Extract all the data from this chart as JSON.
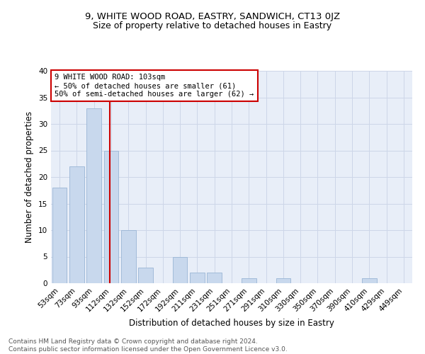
{
  "title1": "9, WHITE WOOD ROAD, EASTRY, SANDWICH, CT13 0JZ",
  "title2": "Size of property relative to detached houses in Eastry",
  "xlabel": "Distribution of detached houses by size in Eastry",
  "ylabel": "Number of detached properties",
  "categories": [
    "53sqm",
    "73sqm",
    "93sqm",
    "112sqm",
    "132sqm",
    "152sqm",
    "172sqm",
    "192sqm",
    "211sqm",
    "231sqm",
    "251sqm",
    "271sqm",
    "291sqm",
    "310sqm",
    "330sqm",
    "350sqm",
    "370sqm",
    "390sqm",
    "410sqm",
    "429sqm",
    "449sqm"
  ],
  "values": [
    18,
    22,
    33,
    25,
    10,
    3,
    0,
    5,
    2,
    2,
    0,
    1,
    0,
    1,
    0,
    0,
    0,
    0,
    1,
    0,
    0
  ],
  "bar_color": "#c8d8ed",
  "bar_edge_color": "#9ab5d5",
  "vline_color": "#cc0000",
  "vline_x_index": 2.93,
  "annotation_text": "9 WHITE WOOD ROAD: 103sqm\n← 50% of detached houses are smaller (61)\n50% of semi-detached houses are larger (62) →",
  "annotation_box_edge_color": "#cc0000",
  "ylim": [
    0,
    40
  ],
  "yticks": [
    0,
    5,
    10,
    15,
    20,
    25,
    30,
    35,
    40
  ],
  "grid_color": "#cdd6e8",
  "background_color": "#e8eef8",
  "footer_text": "Contains HM Land Registry data © Crown copyright and database right 2024.\nContains public sector information licensed under the Open Government Licence v3.0.",
  "title1_fontsize": 9.5,
  "title2_fontsize": 9,
  "xlabel_fontsize": 8.5,
  "ylabel_fontsize": 8.5,
  "tick_fontsize": 7.5,
  "annotation_fontsize": 7.5,
  "footer_fontsize": 6.5
}
